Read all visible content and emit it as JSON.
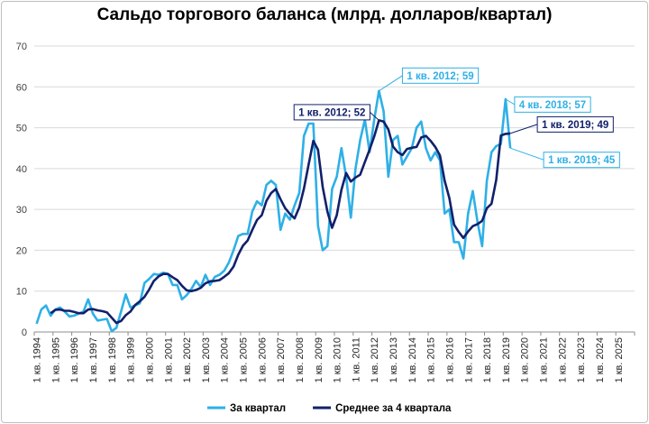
{
  "chart_data": {
    "type": "line",
    "title": "Сальдо торгового баланса (млрд. долларов/квартал)",
    "xlabel": "",
    "ylabel": "",
    "ylim": [
      0,
      70
    ],
    "yticks": [
      0,
      10,
      20,
      30,
      40,
      50,
      60,
      70
    ],
    "grid": true,
    "legend_position": "bottom",
    "x_tick_labels": [
      "1 кв. 1994",
      "1 кв. 1995",
      "1 кв. 1996",
      "1 кв. 1997",
      "1 кв. 1998",
      "1 кв. 1999",
      "1 кв. 2000",
      "1 кв. 2001",
      "1 кв. 2002",
      "1 кв. 2003",
      "1 кв. 2004",
      "1 кв. 2005",
      "1 кв. 2006",
      "1 кв. 2007",
      "1 кв. 2008",
      "1 кв. 2009",
      "1 кв. 2010",
      "1 кв. 2011",
      "1 кв. 2012",
      "1 кв. 2013",
      "1 кв. 2014",
      "1 кв. 2015",
      "1 кв. 2016",
      "1 кв. 2017",
      "1 кв. 2018",
      "1 кв. 2019",
      "1 кв. 2020",
      "1 кв. 2021",
      "1 кв. 2022",
      "1 кв. 2023",
      "1 кв. 2024",
      "1 кв. 2025"
    ],
    "series": [
      {
        "name": "За квартал",
        "color": "#2eb0e6",
        "values": [
          2,
          5.5,
          6.5,
          4,
          5.5,
          6,
          5,
          3.8,
          4,
          4.5,
          5,
          8,
          4.5,
          2.8,
          3,
          3.2,
          0.2,
          1,
          5,
          9.2,
          6,
          6.5,
          7,
          12,
          13,
          14.2,
          14,
          14.5,
          14.2,
          11.5,
          11.5,
          8,
          9,
          10.5,
          12.5,
          11,
          14,
          11.5,
          13.5,
          14,
          15,
          17,
          20,
          23.5,
          24,
          24,
          29.5,
          32,
          31,
          36,
          37,
          36,
          25,
          29,
          27.5,
          31,
          34,
          48,
          51,
          51,
          26,
          20,
          21,
          35,
          38,
          45,
          38,
          28,
          40,
          47,
          52,
          44,
          52,
          59,
          54,
          38,
          47,
          48,
          41,
          43,
          45,
          50,
          51.5,
          45,
          42,
          44,
          42,
          29,
          30,
          22,
          22,
          18,
          29,
          34.5,
          27,
          21,
          37,
          44,
          45.5,
          46,
          57,
          45
        ]
      },
      {
        "name": "Среднее за 4 квартала",
        "color": "#12206b",
        "values": [
          null,
          null,
          null,
          4.6,
          5.4,
          5.5,
          5.2,
          5.2,
          4.9,
          4.6,
          4.6,
          5.5,
          5.6,
          5.3,
          5.1,
          4.8,
          3.5,
          2.2,
          2.7,
          4.1,
          5,
          6.6,
          7.5,
          8.6,
          10.4,
          12.5,
          13.6,
          14.2,
          14.2,
          13.4,
          12.7,
          11.3,
          10.2,
          10,
          10.3,
          10.8,
          11.9,
          12.4,
          12.5,
          12.7,
          13.5,
          14.4,
          16,
          18.9,
          21.1,
          22.4,
          25,
          27.4,
          28.6,
          32.1,
          34,
          35,
          32.5,
          30.3,
          28.9,
          27.8,
          30.5,
          35.1,
          41,
          46.8,
          44.6,
          35.5,
          29.5,
          25.5,
          28.6,
          34.8,
          38.9,
          36.8,
          37.8,
          38.5,
          41.6,
          44.6,
          47.9,
          51.8,
          51.5,
          49.6,
          45.4,
          44,
          43.3,
          44.8,
          45.1,
          45.3,
          47.6,
          48,
          46.8,
          45.3,
          43.2,
          37,
          32.8,
          26.3,
          24.5,
          23,
          24.6,
          25.9,
          26.4,
          27.2,
          30.3,
          31.4,
          37.2,
          48.1,
          48.5,
          48.6
        ]
      }
    ],
    "annotations": [
      {
        "text": "1 кв. 2012; 59",
        "series": "За квартал",
        "index": 73,
        "style": "light"
      },
      {
        "text": "1 кв. 2012; 52",
        "series": "Среднее за 4 квартала",
        "index": 73,
        "style": "dark"
      },
      {
        "text": "4 кв. 2018; 57",
        "series": "За квартал",
        "index": 100,
        "style": "light"
      },
      {
        "text": "1 кв. 2019; 49",
        "series": "Среднее за 4 квартала",
        "index": 101,
        "style": "dark"
      },
      {
        "text": "1 кв. 2019; 45",
        "series": "За квартал",
        "index": 101,
        "style": "light"
      }
    ]
  }
}
